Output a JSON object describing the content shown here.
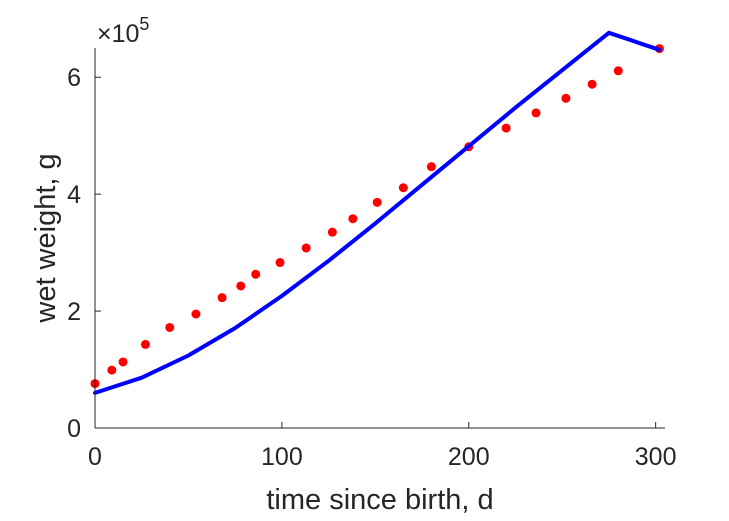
{
  "chart_data": {
    "type": "scatter",
    "title": "",
    "xlabel": "time since birth, d",
    "ylabel": "wet weight, g",
    "xlim": [
      0,
      305
    ],
    "ylim": [
      0,
      6.5
    ],
    "y_multiplier_label": {
      "base": "×10",
      "exponent": "5"
    },
    "x_ticks": [
      0,
      100,
      200,
      300
    ],
    "y_ticks": [
      0,
      2,
      4,
      6
    ],
    "grid": false,
    "series": [
      {
        "kind": "scatter",
        "color": "#ff0000",
        "points": [
          [
            0,
            0.76
          ],
          [
            9,
            0.99
          ],
          [
            15,
            1.13
          ],
          [
            27,
            1.43
          ],
          [
            40,
            1.72
          ],
          [
            54,
            1.95
          ],
          [
            68,
            2.23
          ],
          [
            78,
            2.43
          ],
          [
            86,
            2.63
          ],
          [
            99,
            2.83
          ],
          [
            113,
            3.08
          ],
          [
            127,
            3.35
          ],
          [
            138,
            3.58
          ],
          [
            151,
            3.86
          ],
          [
            165,
            4.11
          ],
          [
            180,
            4.47
          ],
          [
            200,
            4.81
          ],
          [
            220,
            5.13
          ],
          [
            236,
            5.39
          ],
          [
            252,
            5.64
          ],
          [
            266,
            5.88
          ],
          [
            280,
            6.11
          ],
          [
            302,
            6.49
          ]
        ]
      },
      {
        "kind": "line",
        "color": "#0000ff",
        "points": [
          [
            0,
            0.6
          ],
          [
            25,
            0.86
          ],
          [
            50,
            1.24
          ],
          [
            75,
            1.71
          ],
          [
            100,
            2.26
          ],
          [
            125,
            2.86
          ],
          [
            150,
            3.5
          ],
          [
            175,
            4.16
          ],
          [
            200,
            4.82
          ],
          [
            225,
            5.48
          ],
          [
            250,
            6.12
          ],
          [
            275,
            6.76
          ],
          [
            302,
            6.47
          ]
        ]
      }
    ]
  }
}
